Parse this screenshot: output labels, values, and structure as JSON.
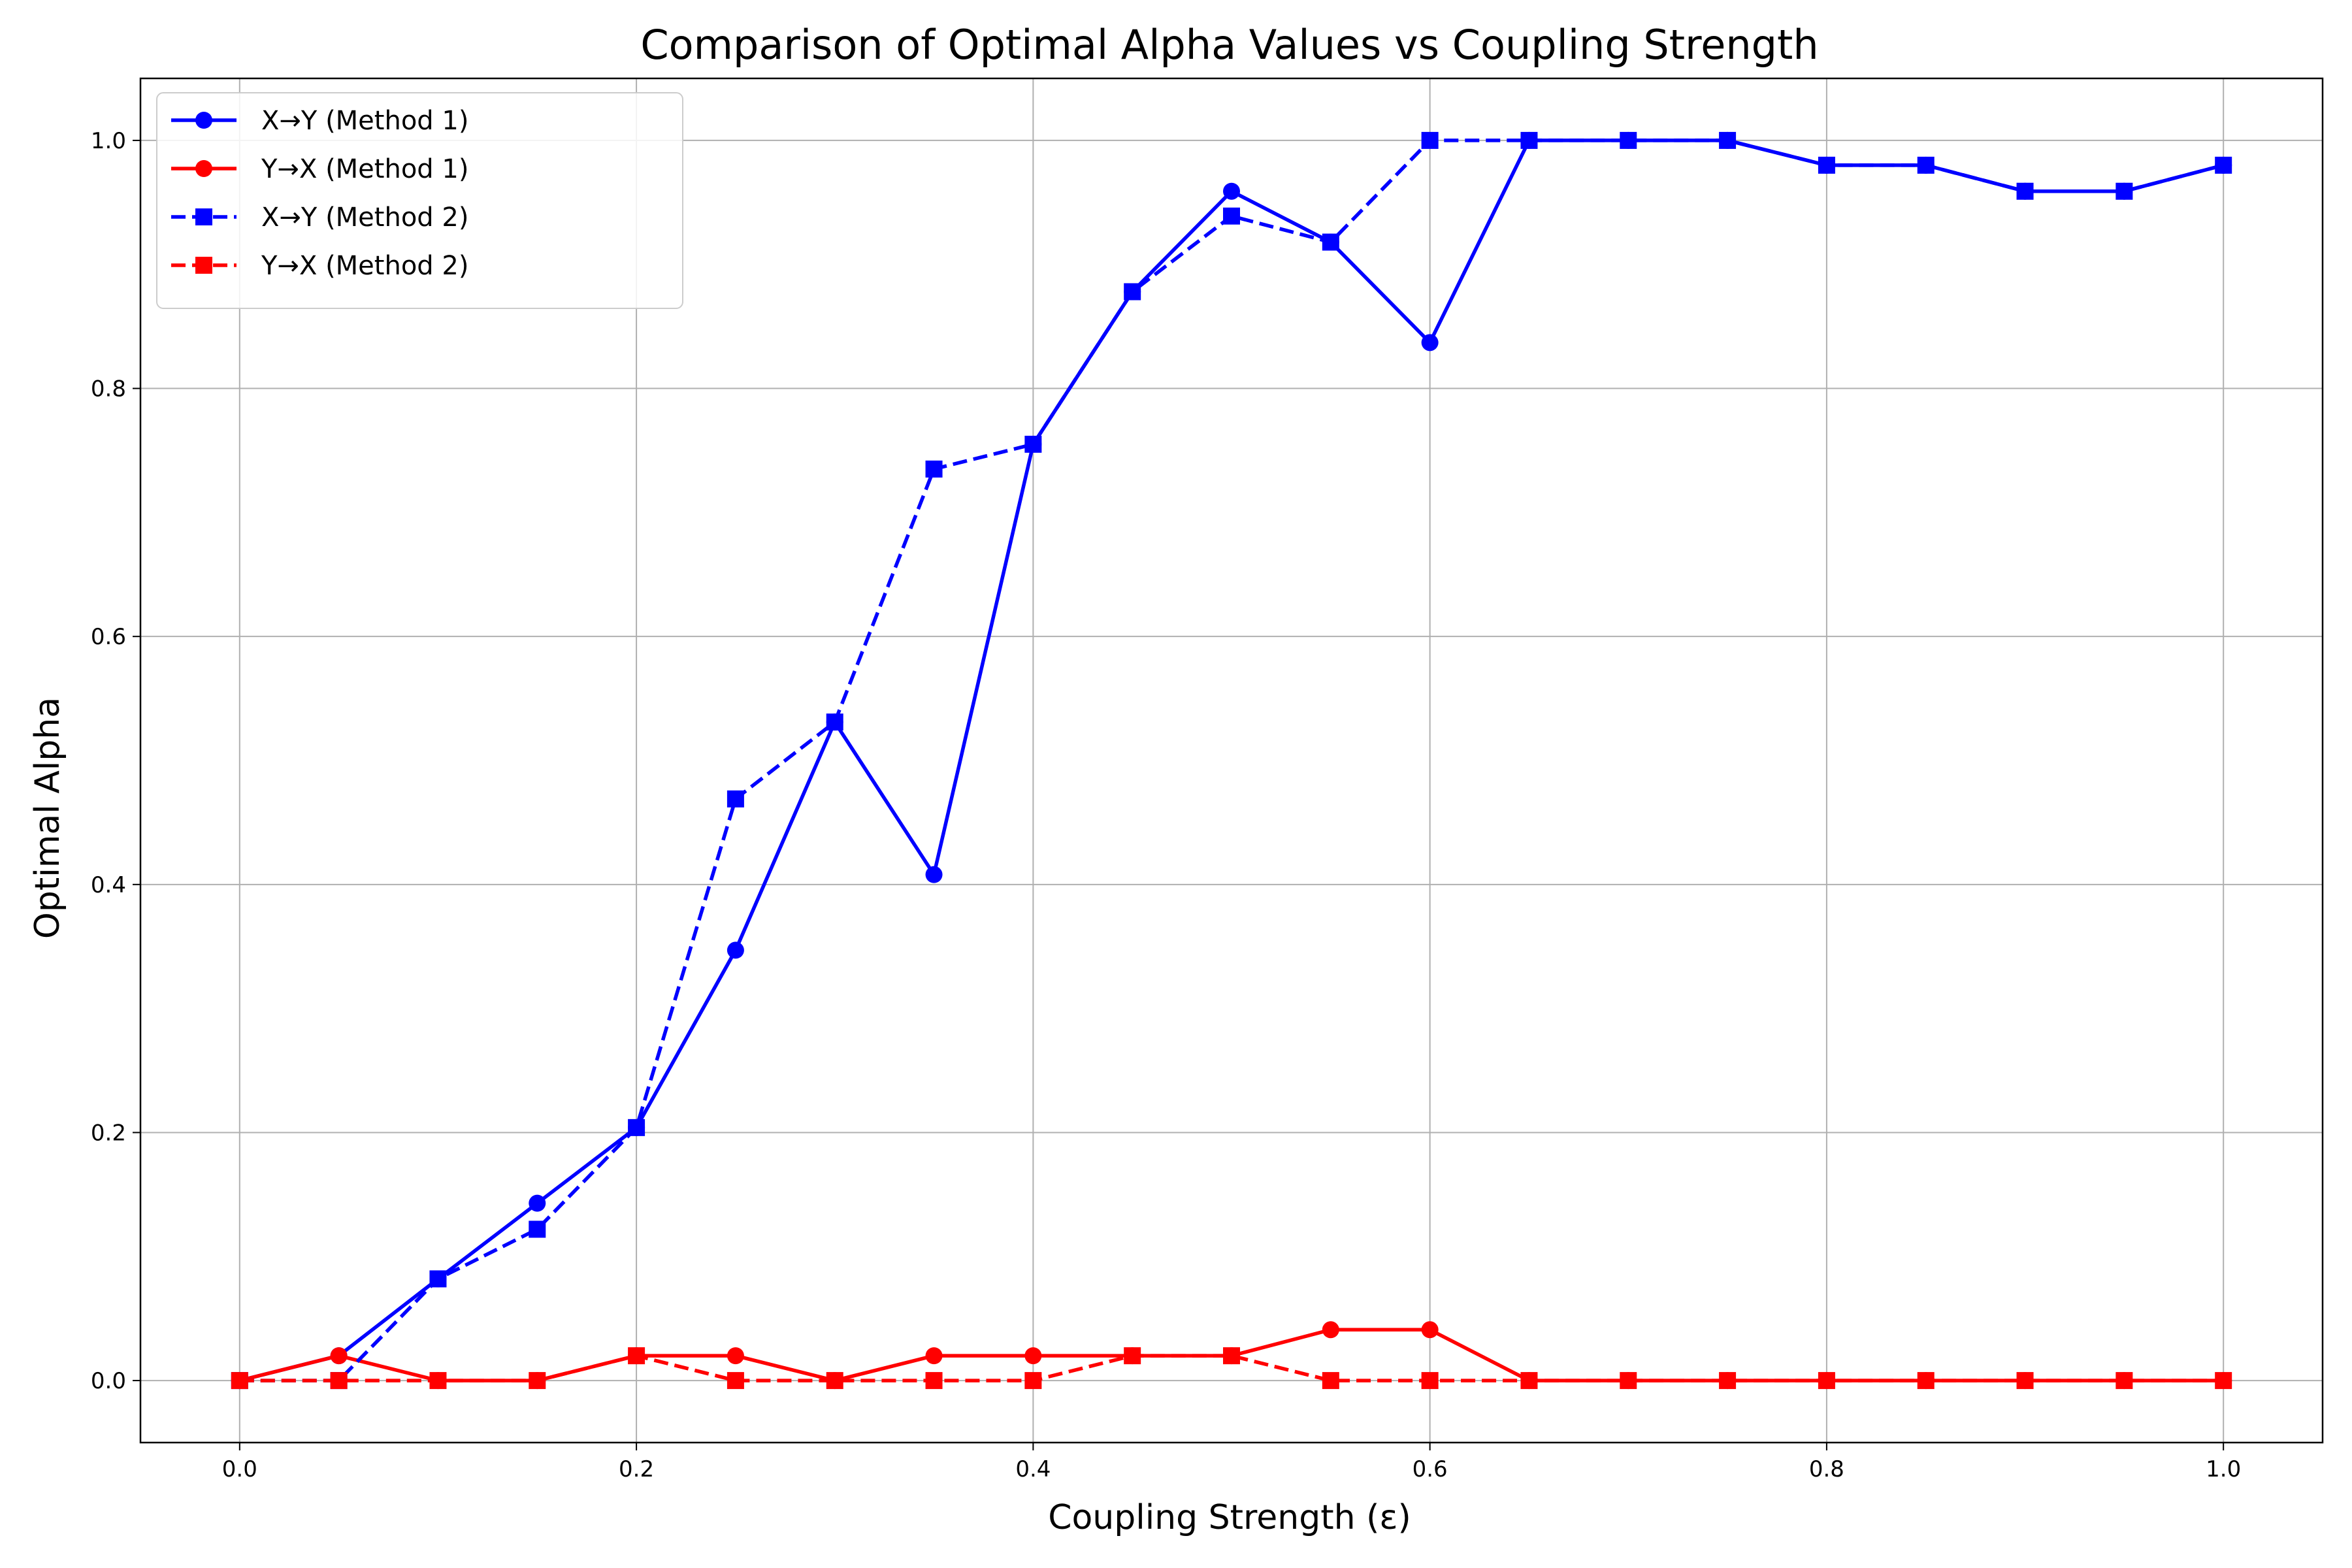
{
  "chart_data": {
    "type": "line",
    "title": "Comparison of Optimal Alpha Values vs Coupling Strength",
    "xlabel": "Coupling Strength (ε)",
    "ylabel": "Optimal Alpha",
    "xlim": [
      -0.05,
      1.05
    ],
    "ylim": [
      -0.05,
      1.05
    ],
    "x_ticks": [
      "0.0",
      "0.2",
      "0.4",
      "0.6",
      "0.8",
      "1.0"
    ],
    "y_ticks": [
      "0.0",
      "0.2",
      "0.4",
      "0.6",
      "0.8",
      "1.0"
    ],
    "grid": true,
    "legend_position": "top-left",
    "x": [
      0.0,
      0.05,
      0.1,
      0.15,
      0.2,
      0.25,
      0.3,
      0.35,
      0.4,
      0.45,
      0.5,
      0.55,
      0.6,
      0.65,
      0.7,
      0.75,
      0.8,
      0.85,
      0.9,
      0.95,
      1.0
    ],
    "series": [
      {
        "name": "X→Y (Method 1)",
        "color": "#0000ff",
        "line_style": "solid",
        "marker": "circle",
        "values": [
          0.0,
          0.02,
          0.082,
          0.143,
          0.204,
          0.347,
          0.531,
          0.408,
          0.755,
          0.878,
          0.959,
          0.918,
          0.837,
          1.0,
          1.0,
          1.0,
          0.98,
          0.98,
          0.959,
          0.959,
          0.98
        ]
      },
      {
        "name": "Y→X (Method 1)",
        "color": "#ff0000",
        "line_style": "solid",
        "marker": "circle",
        "values": [
          0.0,
          0.02,
          0.0,
          0.0,
          0.02,
          0.02,
          0.0,
          0.02,
          0.02,
          0.02,
          0.02,
          0.041,
          0.041,
          0.0,
          0.0,
          0.0,
          0.0,
          0.0,
          0.0,
          0.0,
          0.0
        ]
      },
      {
        "name": "X→Y (Method 2)",
        "color": "#0000ff",
        "line_style": "dashed",
        "marker": "square",
        "values": [
          0.0,
          0.0,
          0.082,
          0.122,
          0.204,
          0.469,
          0.531,
          0.735,
          0.755,
          0.878,
          0.939,
          0.918,
          1.0,
          1.0,
          1.0,
          1.0,
          0.98,
          0.98,
          0.959,
          0.959,
          0.98
        ]
      },
      {
        "name": "Y→X (Method 2)",
        "color": "#ff0000",
        "line_style": "dashed",
        "marker": "square",
        "values": [
          0.0,
          0.0,
          0.0,
          0.0,
          0.02,
          0.0,
          0.0,
          0.0,
          0.0,
          0.02,
          0.02,
          0.0,
          0.0,
          0.0,
          0.0,
          0.0,
          0.0,
          0.0,
          0.0,
          0.0,
          0.0
        ]
      }
    ]
  }
}
